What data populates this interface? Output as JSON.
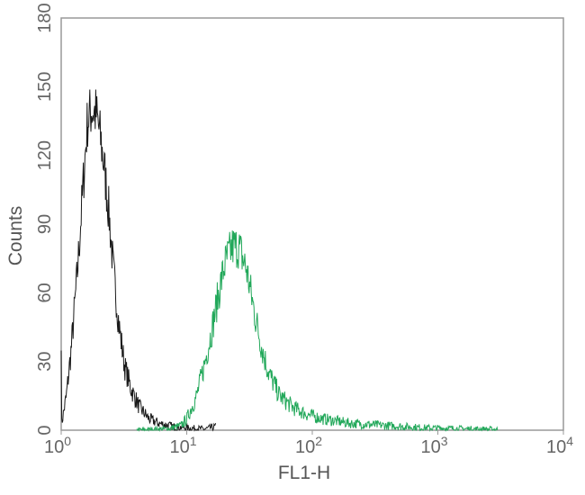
{
  "chart_data": {
    "type": "line",
    "title": "",
    "xlabel": "FL1-H",
    "ylabel": "Counts",
    "xscale": "log",
    "xlim": [
      1,
      10000
    ],
    "ylim": [
      0,
      180
    ],
    "xticks": [
      {
        "base": "10",
        "exp": "0"
      },
      {
        "base": "10",
        "exp": "1"
      },
      {
        "base": "10",
        "exp": "2"
      },
      {
        "base": "10",
        "exp": "3"
      },
      {
        "base": "10",
        "exp": "4"
      }
    ],
    "yticks": [
      "0",
      "30",
      "60",
      "90",
      "120",
      "150",
      "180"
    ],
    "grid": false,
    "series": [
      {
        "color": "#1a1a1a",
        "points": [
          [
            1.0,
            42
          ],
          [
            1.01,
            3
          ],
          [
            1.1,
            15
          ],
          [
            1.2,
            35
          ],
          [
            1.35,
            70
          ],
          [
            1.5,
            108
          ],
          [
            1.62,
            135
          ],
          [
            1.75,
            140
          ],
          [
            1.9,
            138
          ],
          [
            2.05,
            128
          ],
          [
            2.2,
            115
          ],
          [
            2.4,
            95
          ],
          [
            2.6,
            70
          ],
          [
            2.9,
            45
          ],
          [
            3.2,
            28
          ],
          [
            3.6,
            18
          ],
          [
            4.2,
            10
          ],
          [
            5,
            5
          ],
          [
            6,
            3
          ],
          [
            8,
            1.5
          ],
          [
            10,
            1
          ],
          [
            14,
            0.5
          ],
          [
            17,
            1.5
          ]
        ]
      },
      {
        "color": "#22a85a",
        "points": [
          [
            4,
            0
          ],
          [
            7,
            0.5
          ],
          [
            9,
            2
          ],
          [
            10,
            5
          ],
          [
            12,
            15
          ],
          [
            14,
            30
          ],
          [
            16,
            45
          ],
          [
            18,
            60
          ],
          [
            20,
            72
          ],
          [
            23,
            80
          ],
          [
            26,
            80
          ],
          [
            30,
            70
          ],
          [
            35,
            50
          ],
          [
            40,
            35
          ],
          [
            45,
            25
          ],
          [
            55,
            15
          ],
          [
            70,
            10
          ],
          [
            90,
            7
          ],
          [
            120,
            5
          ],
          [
            200,
            3
          ],
          [
            400,
            2
          ],
          [
            800,
            1
          ],
          [
            2000,
            0.5
          ],
          [
            3000,
            0.3
          ]
        ]
      }
    ]
  }
}
